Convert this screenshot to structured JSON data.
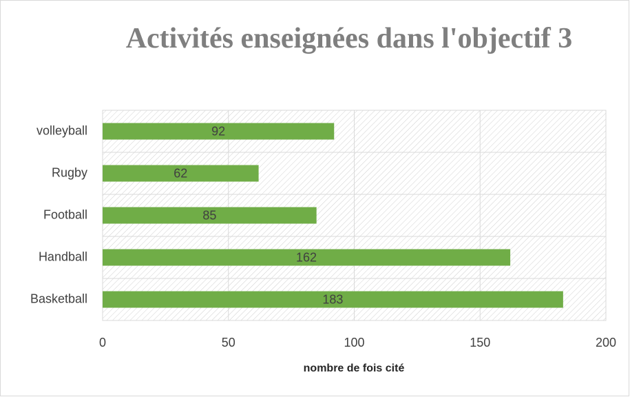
{
  "chart_data": {
    "type": "bar",
    "orientation": "horizontal",
    "title": "Activités enseignées dans l'objectif 3",
    "x_label": "nombre de fois cité",
    "categories": [
      "Basketball",
      "Handball",
      "Football",
      "Rugby",
      "volleyball"
    ],
    "values": [
      183,
      162,
      85,
      62,
      92
    ],
    "color": "#70ad47",
    "xlim": [
      0,
      200
    ],
    "xticks": [
      0,
      50,
      100,
      150,
      200
    ],
    "grid": true
  }
}
